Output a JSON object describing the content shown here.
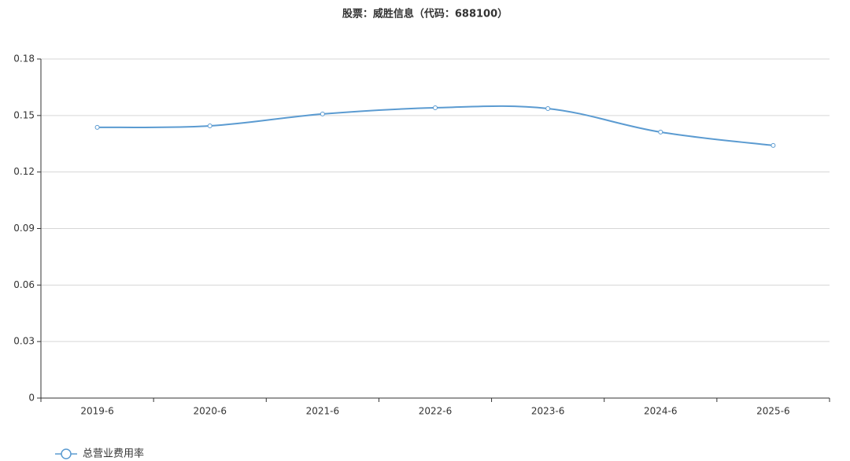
{
  "chart_data": {
    "type": "line",
    "title": "股票：威胜信息（代码：688100）",
    "categories": [
      "2019-6",
      "2020-6",
      "2021-6",
      "2022-6",
      "2023-6",
      "2024-6",
      "2025-6"
    ],
    "series": [
      {
        "name": "总营业费用率",
        "color": "#5b9bd1",
        "values": [
          0.1437,
          0.1445,
          0.1508,
          0.1541,
          0.1537,
          0.1412,
          0.1341
        ]
      }
    ],
    "ylim": [
      0,
      0.18
    ],
    "yticks": [
      0,
      0.03,
      0.06,
      0.09,
      0.12,
      0.15,
      0.18
    ],
    "grid": true,
    "legend": "bottom-left"
  }
}
